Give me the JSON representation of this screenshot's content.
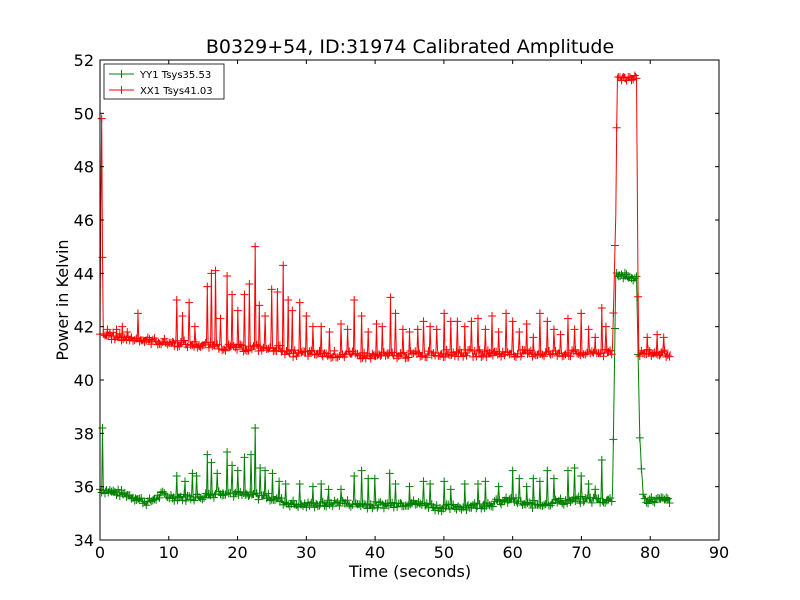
{
  "chart_data": {
    "type": "line",
    "title": "B0329+54, ID:31974 Calibrated Amplitude",
    "xlabel": "Time (seconds)",
    "ylabel": "Power in Kelvin",
    "xlim": [
      0,
      90
    ],
    "ylim": [
      34,
      52
    ],
    "xticks": [
      0,
      10,
      20,
      30,
      40,
      50,
      60,
      70,
      80,
      90
    ],
    "yticks": [
      34,
      36,
      38,
      40,
      42,
      44,
      46,
      48,
      50,
      52
    ],
    "grid": false,
    "legend_position": "top-left",
    "series": [
      {
        "name": "YY1 Tsys35.53",
        "color": "#008000",
        "marker": "+",
        "baseline": [
          [
            0,
            35.9
          ],
          [
            2,
            35.8
          ],
          [
            4,
            35.7
          ],
          [
            6,
            35.5
          ],
          [
            7,
            35.4
          ],
          [
            9,
            35.7
          ],
          [
            11,
            35.6
          ],
          [
            14,
            35.6
          ],
          [
            18,
            35.8
          ],
          [
            20,
            35.7
          ],
          [
            25,
            35.6
          ],
          [
            27,
            35.4
          ],
          [
            30,
            35.3
          ],
          [
            35,
            35.4
          ],
          [
            40,
            35.3
          ],
          [
            45,
            35.4
          ],
          [
            50,
            35.2
          ],
          [
            55,
            35.3
          ],
          [
            60,
            35.5
          ],
          [
            62,
            35.3
          ],
          [
            65,
            35.4
          ],
          [
            70,
            35.5
          ],
          [
            74.5,
            35.5
          ],
          [
            75,
            44.0
          ],
          [
            76,
            43.9
          ],
          [
            78,
            43.8
          ],
          [
            78.5,
            37.7
          ],
          [
            79,
            35.5
          ],
          [
            83,
            35.5
          ]
        ],
        "spikes": [
          [
            0.3,
            38.2
          ],
          [
            11.2,
            36.4
          ],
          [
            12.4,
            36.2
          ],
          [
            13.4,
            36.5
          ],
          [
            14.0,
            36.4
          ],
          [
            15.6,
            37.2
          ],
          [
            16.2,
            36.9
          ],
          [
            17.0,
            36.5
          ],
          [
            18.5,
            37.3
          ],
          [
            19.2,
            36.8
          ],
          [
            20.0,
            36.6
          ],
          [
            21.0,
            37.1
          ],
          [
            21.9,
            37.2
          ],
          [
            22.6,
            38.2
          ],
          [
            23.3,
            36.7
          ],
          [
            24.0,
            36.6
          ],
          [
            25.1,
            36.5
          ],
          [
            26.0,
            36.2
          ],
          [
            27.0,
            36.1
          ],
          [
            29.0,
            36.1
          ],
          [
            31.0,
            36.0
          ],
          [
            32.1,
            36.1
          ],
          [
            33.2,
            35.9
          ],
          [
            35.0,
            35.9
          ],
          [
            37.0,
            36.4
          ],
          [
            38.0,
            36.6
          ],
          [
            39.0,
            36.3
          ],
          [
            40.0,
            36.3
          ],
          [
            42.1,
            36.5
          ],
          [
            43.0,
            36.1
          ],
          [
            45.0,
            36.0
          ],
          [
            47.0,
            36.2
          ],
          [
            48.0,
            36.1
          ],
          [
            50.0,
            36.2
          ],
          [
            51.0,
            35.9
          ],
          [
            53.0,
            36.1
          ],
          [
            55.0,
            36.1
          ],
          [
            56.0,
            36.2
          ],
          [
            58.0,
            36.0
          ],
          [
            60.0,
            36.6
          ],
          [
            61.0,
            36.3
          ],
          [
            62.0,
            36.0
          ],
          [
            63.0,
            36.3
          ],
          [
            64.0,
            36.2
          ],
          [
            65.0,
            36.6
          ],
          [
            66.0,
            36.3
          ],
          [
            68.0,
            36.6
          ],
          [
            69.0,
            36.7
          ],
          [
            70.0,
            36.4
          ],
          [
            71.0,
            36.1
          ],
          [
            72.0,
            35.9
          ],
          [
            73.0,
            37.0
          ]
        ]
      },
      {
        "name": "XX1 Tsys41.03",
        "color": "#ff0000",
        "marker": "+",
        "baseline": [
          [
            0,
            41.6
          ],
          [
            0.2,
            49.8
          ],
          [
            0.4,
            41.7
          ],
          [
            3,
            41.6
          ],
          [
            6,
            41.5
          ],
          [
            10,
            41.4
          ],
          [
            15,
            41.3
          ],
          [
            20,
            41.2
          ],
          [
            26,
            41.2
          ],
          [
            27,
            41.0
          ],
          [
            30,
            41.0
          ],
          [
            40,
            40.9
          ],
          [
            50,
            41.0
          ],
          [
            60,
            41.0
          ],
          [
            70,
            41.0
          ],
          [
            74.5,
            41.0
          ],
          [
            75,
            46.3
          ],
          [
            75.2,
            51.5
          ],
          [
            76,
            51.3
          ],
          [
            78,
            51.4
          ],
          [
            78.3,
            41.0
          ],
          [
            80,
            41.0
          ],
          [
            83,
            41.0
          ]
        ],
        "spikes": [
          [
            0.2,
            49.8
          ],
          [
            0.4,
            44.6
          ],
          [
            1.1,
            41.9
          ],
          [
            2.4,
            41.9
          ],
          [
            3.2,
            42.0
          ],
          [
            4.0,
            41.8
          ],
          [
            5.5,
            42.5
          ],
          [
            11.2,
            43.0
          ],
          [
            12.0,
            42.4
          ],
          [
            13.0,
            42.9
          ],
          [
            13.8,
            42.0
          ],
          [
            15.6,
            43.5
          ],
          [
            16.2,
            44.0
          ],
          [
            16.8,
            44.1
          ],
          [
            17.5,
            42.3
          ],
          [
            18.5,
            43.9
          ],
          [
            19.2,
            43.2
          ],
          [
            20.0,
            42.6
          ],
          [
            21.0,
            43.2
          ],
          [
            21.7,
            43.6
          ],
          [
            22.6,
            45.0
          ],
          [
            23.2,
            42.8
          ],
          [
            24.0,
            42.4
          ],
          [
            25.0,
            43.4
          ],
          [
            25.8,
            43.3
          ],
          [
            26.6,
            44.3
          ],
          [
            27.3,
            43.0
          ],
          [
            28.0,
            42.6
          ],
          [
            29.0,
            42.9
          ],
          [
            30.0,
            42.4
          ],
          [
            31.0,
            42.0
          ],
          [
            32.2,
            42.0
          ],
          [
            33.4,
            41.8
          ],
          [
            35.0,
            42.1
          ],
          [
            36.0,
            41.9
          ],
          [
            37.0,
            43.0
          ],
          [
            38.0,
            42.4
          ],
          [
            39.0,
            41.8
          ],
          [
            40.2,
            42.1
          ],
          [
            41.0,
            42.0
          ],
          [
            42.2,
            43.1
          ],
          [
            43.0,
            42.5
          ],
          [
            44.0,
            41.9
          ],
          [
            45.0,
            41.8
          ],
          [
            46.2,
            41.9
          ],
          [
            47.0,
            42.2
          ],
          [
            48.0,
            42.0
          ],
          [
            49.0,
            41.9
          ],
          [
            50.0,
            42.5
          ],
          [
            51.0,
            42.2
          ],
          [
            52.0,
            42.2
          ],
          [
            53.0,
            42.0
          ],
          [
            54.0,
            42.2
          ],
          [
            55.0,
            42.3
          ],
          [
            56.0,
            41.9
          ],
          [
            57.0,
            42.4
          ],
          [
            58.0,
            41.8
          ],
          [
            59.0,
            42.5
          ],
          [
            60.0,
            42.2
          ],
          [
            61.0,
            41.8
          ],
          [
            62.0,
            42.1
          ],
          [
            63.0,
            41.6
          ],
          [
            64.0,
            42.5
          ],
          [
            65.0,
            42.2
          ],
          [
            66.0,
            41.9
          ],
          [
            67.0,
            41.7
          ],
          [
            68.0,
            42.3
          ],
          [
            69.0,
            41.9
          ],
          [
            70.0,
            42.5
          ],
          [
            71.0,
            41.9
          ],
          [
            72.0,
            41.6
          ],
          [
            73.0,
            42.7
          ],
          [
            73.5,
            42.0
          ],
          [
            79.5,
            41.6
          ],
          [
            81.0,
            41.7
          ],
          [
            82.0,
            41.6
          ]
        ]
      }
    ]
  }
}
